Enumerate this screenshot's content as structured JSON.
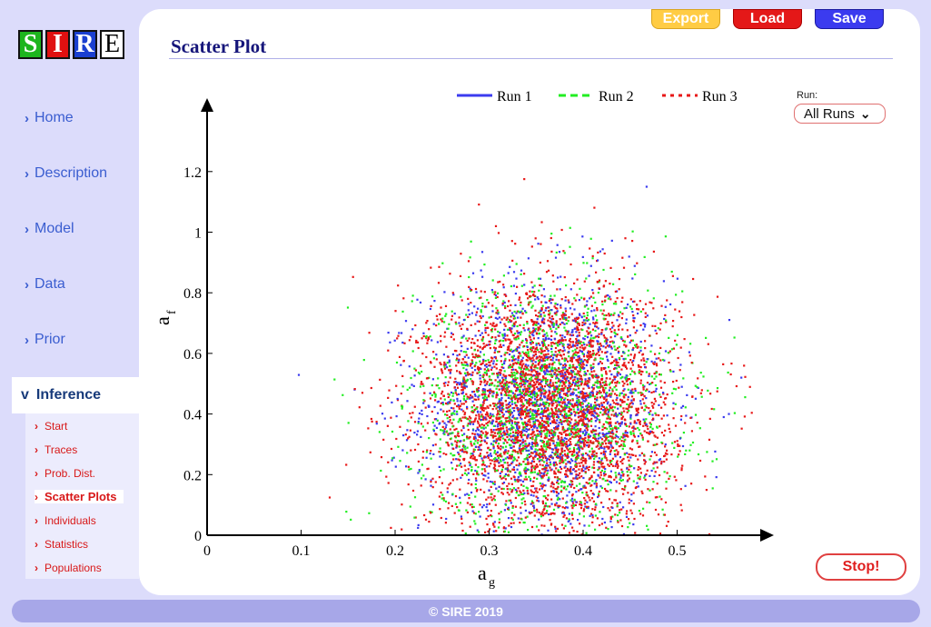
{
  "logo": {
    "letters": [
      "S",
      "I",
      "R",
      "E"
    ]
  },
  "nav": {
    "items": [
      {
        "label": "Home"
      },
      {
        "label": "Description"
      },
      {
        "label": "Model"
      },
      {
        "label": "Data"
      },
      {
        "label": "Prior"
      }
    ],
    "active": {
      "label": "Inference",
      "chevron": "v"
    },
    "sub_items": [
      {
        "label": "Start"
      },
      {
        "label": "Traces"
      },
      {
        "label": "Prob. Dist."
      },
      {
        "label": "Scatter Plots",
        "active": true
      },
      {
        "label": "Individuals"
      },
      {
        "label": "Statistics"
      },
      {
        "label": "Populations"
      }
    ]
  },
  "toolbar": {
    "export_label": "Export",
    "load_label": "Load",
    "save_label": "Save"
  },
  "page": {
    "title": "Scatter Plot"
  },
  "run_selector": {
    "label": "Run:",
    "value": "All Runs"
  },
  "stop_label": "Stop!",
  "footer": {
    "text": "© SIRE 2019"
  },
  "colors": {
    "run1": "#3b3bef",
    "run2": "#22ee22",
    "run3": "#e81818",
    "accent": "#15157a"
  },
  "chart_data": {
    "type": "scatter",
    "title": "",
    "xlabel": "a",
    "xlabel_sub": "g",
    "ylabel": "a",
    "ylabel_sub": "f",
    "xlim": [
      0,
      0.6
    ],
    "ylim": [
      0,
      1.35
    ],
    "x_ticks": [
      "0",
      "0.1",
      "0.2",
      "0.3",
      "0.4",
      "0.5"
    ],
    "y_ticks": [
      "0",
      "0.2",
      "0.4",
      "0.6",
      "0.8",
      "1",
      "1.2"
    ],
    "legend_position": "top",
    "grid": false,
    "series": [
      {
        "name": "Run 1",
        "color": "#3b3bef",
        "line_style": "solid",
        "n_points": 1500,
        "x_mean": 0.36,
        "x_sd": 0.065,
        "y_mean": 0.43,
        "y_sd": 0.21
      },
      {
        "name": "Run 2",
        "color": "#22ee22",
        "line_style": "dashed",
        "n_points": 1500,
        "x_mean": 0.36,
        "x_sd": 0.07,
        "y_mean": 0.42,
        "y_sd": 0.2
      },
      {
        "name": "Run 3",
        "color": "#e81818",
        "line_style": "dotted",
        "n_points": 3500,
        "x_mean": 0.365,
        "x_sd": 0.065,
        "y_mean": 0.42,
        "y_sd": 0.2
      }
    ]
  }
}
